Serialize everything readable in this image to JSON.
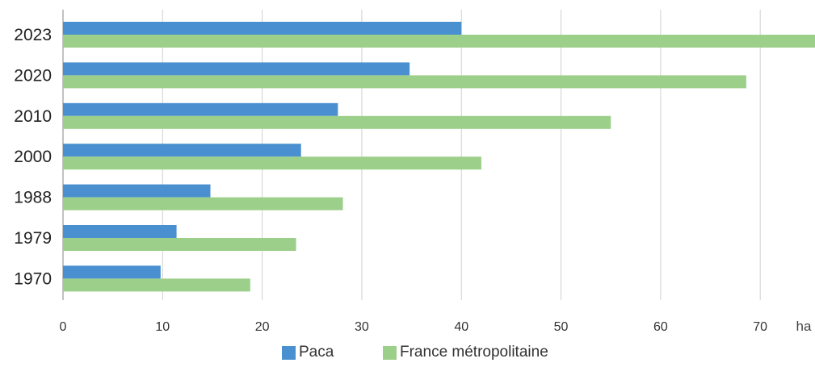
{
  "chart_data": {
    "type": "bar",
    "orientation": "horizontal",
    "categories": [
      "2023",
      "2020",
      "2010",
      "2000",
      "1988",
      "1979",
      "1970"
    ],
    "series": [
      {
        "name": "Paca",
        "color": "#4a90d0",
        "values": [
          40,
          34.8,
          27.6,
          23.9,
          14.8,
          11.4,
          9.8
        ]
      },
      {
        "name": "France métropolitaine",
        "color": "#9ccf8a",
        "values": [
          75.5,
          68.6,
          55,
          42,
          28.1,
          23.4,
          18.8
        ]
      }
    ],
    "xticks": [
      "0",
      "10",
      "20",
      "30",
      "40",
      "50",
      "60",
      "70"
    ],
    "xlim": [
      0,
      75.5
    ],
    "x_unit": "ha",
    "grid": true,
    "legend_position": "bottom"
  }
}
